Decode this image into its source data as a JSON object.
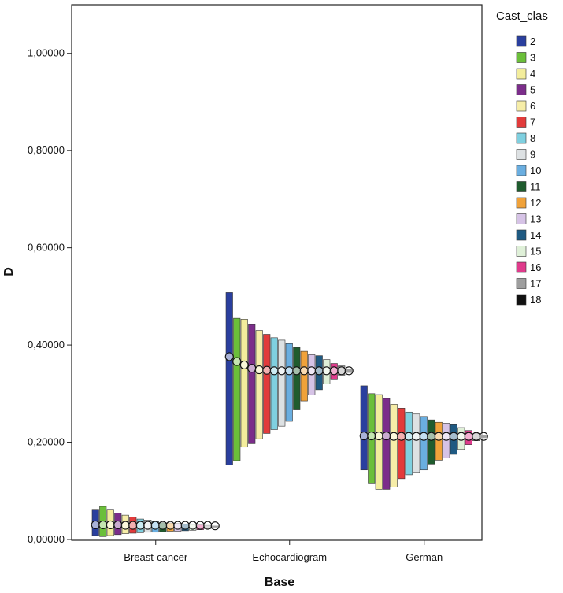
{
  "chart_data": {
    "type": "bar",
    "subtype": "high-low-close",
    "xlabel": "Base",
    "ylabel": "D",
    "ylim": [
      0,
      1.1
    ],
    "yticks": [
      "0,00000",
      "0,20000",
      "0,40000",
      "0,60000",
      "0,80000",
      "1,00000"
    ],
    "ytick_values": [
      0,
      0.2,
      0.4,
      0.6,
      0.8,
      1.0
    ],
    "grid": false,
    "legend": {
      "title": "Cast_clas",
      "position": "right"
    },
    "categories": [
      "Breast-cancer",
      "Echocardiogram",
      "German"
    ],
    "series": [
      {
        "name": "2",
        "color": "#2a3f9e",
        "high": [
          0.062,
          0.508,
          0.316
        ],
        "low": [
          0.008,
          0.153,
          0.143
        ],
        "mean": [
          0.03,
          0.376,
          0.213
        ]
      },
      {
        "name": "3",
        "color": "#6bbf3a",
        "high": [
          0.068,
          0.455,
          0.3
        ],
        "low": [
          0.006,
          0.162,
          0.116
        ],
        "mean": [
          0.03,
          0.366,
          0.213
        ]
      },
      {
        "name": "4",
        "color": "#f3ed9c",
        "high": [
          0.062,
          0.453,
          0.298
        ],
        "low": [
          0.008,
          0.19,
          0.103
        ],
        "mean": [
          0.03,
          0.359,
          0.213
        ]
      },
      {
        "name": "5",
        "color": "#7b2d8a",
        "high": [
          0.054,
          0.442,
          0.29
        ],
        "low": [
          0.01,
          0.197,
          0.103
        ],
        "mean": [
          0.03,
          0.352,
          0.213
        ]
      },
      {
        "name": "6",
        "color": "#f6eda8",
        "high": [
          0.05,
          0.43,
          0.278
        ],
        "low": [
          0.012,
          0.207,
          0.108
        ],
        "mean": [
          0.029,
          0.349,
          0.212
        ]
      },
      {
        "name": "7",
        "color": "#e23b3b",
        "high": [
          0.046,
          0.422,
          0.27
        ],
        "low": [
          0.013,
          0.218,
          0.125
        ],
        "mean": [
          0.029,
          0.348,
          0.212
        ]
      },
      {
        "name": "8",
        "color": "#7fd0e0",
        "high": [
          0.042,
          0.415,
          0.262
        ],
        "low": [
          0.014,
          0.226,
          0.133
        ],
        "mean": [
          0.029,
          0.347,
          0.212
        ]
      },
      {
        "name": "9",
        "color": "#dde1e3",
        "high": [
          0.04,
          0.41,
          0.258
        ],
        "low": [
          0.015,
          0.233,
          0.138
        ],
        "mean": [
          0.029,
          0.347,
          0.212
        ]
      },
      {
        "name": "10",
        "color": "#6aaee0",
        "high": [
          0.037,
          0.403,
          0.253
        ],
        "low": [
          0.015,
          0.243,
          0.143
        ],
        "mean": [
          0.029,
          0.347,
          0.212
        ]
      },
      {
        "name": "11",
        "color": "#1f5c2e",
        "high": [
          0.035,
          0.395,
          0.246
        ],
        "low": [
          0.016,
          0.268,
          0.155
        ],
        "mean": [
          0.029,
          0.347,
          0.212
        ]
      },
      {
        "name": "12",
        "color": "#f0a23a",
        "high": [
          0.034,
          0.387,
          0.241
        ],
        "low": [
          0.017,
          0.285,
          0.163
        ],
        "mean": [
          0.029,
          0.347,
          0.212
        ]
      },
      {
        "name": "13",
        "color": "#d6c3e6",
        "high": [
          0.033,
          0.38,
          0.239
        ],
        "low": [
          0.017,
          0.297,
          0.168
        ],
        "mean": [
          0.029,
          0.347,
          0.212
        ]
      },
      {
        "name": "14",
        "color": "#1f5a82",
        "high": [
          0.032,
          0.378,
          0.236
        ],
        "low": [
          0.018,
          0.308,
          0.175
        ],
        "mean": [
          0.029,
          0.347,
          0.212
        ]
      },
      {
        "name": "15",
        "color": "#dff0d8",
        "high": [
          0.031,
          0.37,
          0.23
        ],
        "low": [
          0.019,
          0.32,
          0.185
        ],
        "mean": [
          0.029,
          0.347,
          0.212
        ]
      },
      {
        "name": "16",
        "color": "#e03b8c",
        "high": [
          0.03,
          0.362,
          0.224
        ],
        "low": [
          0.02,
          0.33,
          0.195
        ],
        "mean": [
          0.029,
          0.347,
          0.212
        ]
      },
      {
        "name": "17",
        "color": "#9e9e9e",
        "high": [
          0.029,
          0.357,
          0.218
        ],
        "low": [
          0.022,
          0.338,
          0.203
        ],
        "mean": [
          0.029,
          0.347,
          0.212
        ]
      },
      {
        "name": "18",
        "color": "#111111",
        "high": [
          0.028,
          0.351,
          0.214
        ],
        "low": [
          0.025,
          0.343,
          0.209
        ],
        "mean": [
          0.028,
          0.347,
          0.212
        ]
      }
    ]
  }
}
